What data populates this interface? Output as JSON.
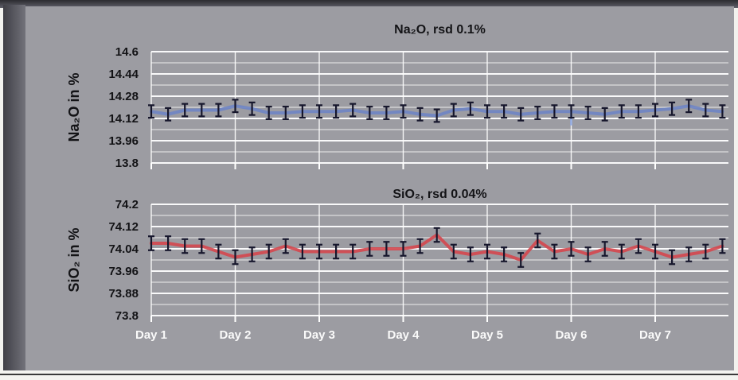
{
  "figure": {
    "panel_color": "#9c9ca2",
    "background_color": "#f2f2ee",
    "gridline_color": "#ffffff",
    "tick_label_color": "#131316",
    "day_label_color": "#fafafa",
    "title_color": "#131316"
  },
  "chart_data": [
    {
      "type": "line",
      "title": "Na₂O, rsd 0.1%",
      "ylabel": "Na₂O in %",
      "xlabel": "",
      "ylim": [
        13.8,
        14.6
      ],
      "yticks_major": [
        "14.6",
        "14.44",
        "14.28",
        "14.12",
        "13.96",
        "13.8"
      ],
      "ytick_minor_step": 0.08,
      "categories": [
        "Day 1",
        "Day 2",
        "Day 3",
        "Day 4",
        "Day 5",
        "Day 6",
        "Day 7"
      ],
      "points_per_day": 5,
      "show_x_labels": false,
      "grid": true,
      "line_color": "#7085c3",
      "error_bar_color": "#16162c",
      "error": 0.045,
      "values": [
        14.17,
        14.15,
        14.18,
        14.18,
        14.18,
        14.21,
        14.19,
        14.16,
        14.16,
        14.17,
        14.17,
        14.17,
        14.18,
        14.16,
        14.16,
        14.17,
        14.15,
        14.14,
        14.18,
        14.19,
        14.17,
        14.17,
        14.15,
        14.16,
        14.17,
        14.17,
        14.16,
        14.15,
        14.17,
        14.17,
        14.18,
        14.19,
        14.21,
        14.18,
        14.17
      ],
      "outlier_whisker": {
        "index": 25,
        "low": 14.07,
        "color": "#8fa8e0"
      }
    },
    {
      "type": "line",
      "title": "SiO₂, rsd 0.04%",
      "ylabel": "SiO₂ in %",
      "xlabel": "",
      "ylim": [
        73.8,
        74.2
      ],
      "yticks_major": [
        "74.2",
        "74.12",
        "74.04",
        "73.96",
        "73.88",
        "73.8"
      ],
      "ytick_minor_step": 0.04,
      "categories": [
        "Day 1",
        "Day 2",
        "Day 3",
        "Day 4",
        "Day 5",
        "Day 6",
        "Day 7"
      ],
      "points_per_day": 5,
      "show_x_labels": true,
      "grid": true,
      "line_color": "#d4494f",
      "error_bar_color": "#16162c",
      "error": 0.025,
      "values": [
        74.06,
        74.06,
        74.05,
        74.05,
        74.03,
        74.01,
        74.02,
        74.03,
        74.05,
        74.03,
        74.03,
        74.03,
        74.03,
        74.04,
        74.04,
        74.04,
        74.05,
        74.09,
        74.03,
        74.02,
        74.03,
        74.02,
        74.0,
        74.07,
        74.03,
        74.04,
        74.02,
        74.04,
        74.03,
        74.05,
        74.03,
        74.01,
        74.02,
        74.03,
        74.05
      ]
    }
  ]
}
